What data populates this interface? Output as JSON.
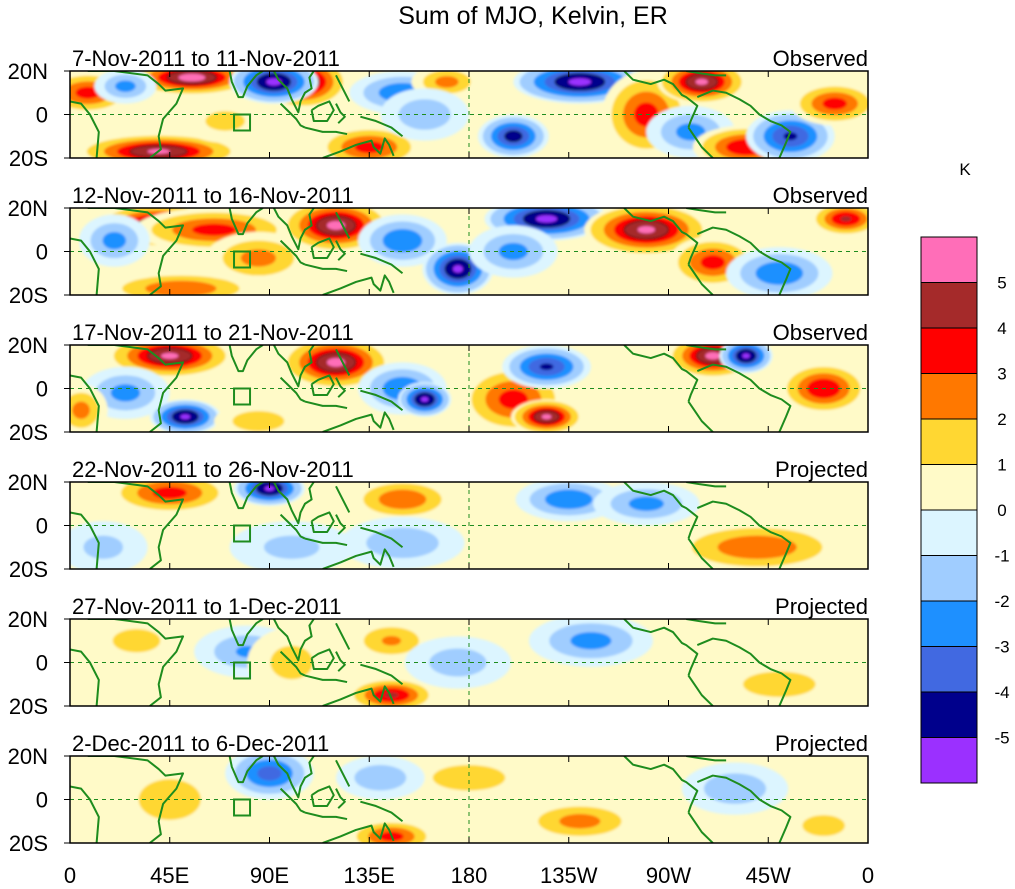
{
  "chart_data": {
    "type": "heatmap",
    "title": "Sum of MJO, Kelvin, ER",
    "colorbar": {
      "unit": "K",
      "ticks": [
        "5",
        "4",
        "3",
        "2",
        "1",
        "0",
        "-1",
        "-2",
        "-3",
        "-4",
        "-5"
      ],
      "bins": [
        {
          "range": "> 5",
          "color": "#ff6eb8"
        },
        {
          "range": "4 to 5",
          "color": "#a52a2a"
        },
        {
          "range": "3 to 4",
          "color": "#ff0000"
        },
        {
          "range": "2 to 3",
          "color": "#ff7800"
        },
        {
          "range": "1 to 2",
          "color": "#ffd732"
        },
        {
          "range": "0 to 1",
          "color": "#fffac8"
        },
        {
          "range": "-1 to 0",
          "color": "#dcf5ff"
        },
        {
          "range": "-2 to -1",
          "color": "#a0cdff"
        },
        {
          "range": "-3 to -2",
          "color": "#1e90ff"
        },
        {
          "range": "-4 to -3",
          "color": "#4169e1"
        },
        {
          "range": "-5 to -4",
          "color": "#00008c"
        },
        {
          "range": "< -5",
          "color": "#9b30ff"
        }
      ]
    },
    "x_tick_labels": [
      "0",
      "45E",
      "90E",
      "135E",
      "180",
      "135W",
      "90W",
      "45W",
      "0"
    ],
    "y_tick_labels": [
      "20N",
      "0",
      "20S"
    ],
    "xlim": [
      0,
      360
    ],
    "ylim": [
      -20,
      20
    ],
    "x_ticks_deg": [
      0,
      45,
      90,
      135,
      180,
      225,
      270,
      315,
      360
    ],
    "panels": [
      {
        "period": "7-Nov-2011 to 11-Nov-2011",
        "status": "Observed",
        "anomalies": [
          {
            "lon": 8,
            "lat": 10,
            "value": 3.5,
            "sx": 10,
            "sy": 5
          },
          {
            "lon": 55,
            "lat": 17,
            "value": 5.5,
            "sx": 14,
            "sy": 4
          },
          {
            "lon": 25,
            "lat": 13,
            "value": -2.5,
            "sx": 7,
            "sy": 4
          },
          {
            "lon": 40,
            "lat": -17,
            "value": 5.2,
            "sx": 18,
            "sy": 4
          },
          {
            "lon": 105,
            "lat": 15,
            "value": 5.3,
            "sx": 10,
            "sy": 6
          },
          {
            "lon": 92,
            "lat": 15,
            "value": -5.3,
            "sx": 10,
            "sy": 5
          },
          {
            "lon": 150,
            "lat": 10,
            "value": -3.0,
            "sx": 12,
            "sy": 5
          },
          {
            "lon": 135,
            "lat": -15,
            "value": 3.5,
            "sx": 12,
            "sy": 5
          },
          {
            "lon": 170,
            "lat": 15,
            "value": 2.5,
            "sx": 8,
            "sy": 4
          },
          {
            "lon": 160,
            "lat": 0,
            "value": -2.0,
            "sx": 10,
            "sy": 6
          },
          {
            "lon": 200,
            "lat": -10,
            "value": -4.5,
            "sx": 8,
            "sy": 5
          },
          {
            "lon": 230,
            "lat": 15,
            "value": -5.3,
            "sx": 15,
            "sy": 5
          },
          {
            "lon": 260,
            "lat": 0,
            "value": 3.5,
            "sx": 10,
            "sy": 10
          },
          {
            "lon": 285,
            "lat": 15,
            "value": 5.2,
            "sx": 10,
            "sy": 5
          },
          {
            "lon": 280,
            "lat": -8,
            "value": -2.5,
            "sx": 10,
            "sy": 6
          },
          {
            "lon": 305,
            "lat": -15,
            "value": 4.0,
            "sx": 12,
            "sy": 5
          },
          {
            "lon": 325,
            "lat": -10,
            "value": -4.2,
            "sx": 10,
            "sy": 6
          },
          {
            "lon": 345,
            "lat": 5,
            "value": 3.5,
            "sx": 10,
            "sy": 5
          },
          {
            "lon": 70,
            "lat": -3,
            "value": 1.5,
            "sx": 10,
            "sy": 5
          }
        ]
      },
      {
        "period": "12-Nov-2011 to 16-Nov-2011",
        "status": "Observed",
        "anomalies": [
          {
            "lon": 40,
            "lat": 12,
            "value": 5.2,
            "sx": 14,
            "sy": 5
          },
          {
            "lon": 65,
            "lat": 10,
            "value": 3.5,
            "sx": 18,
            "sy": 5
          },
          {
            "lon": 20,
            "lat": 5,
            "value": -2.5,
            "sx": 8,
            "sy": 6
          },
          {
            "lon": 120,
            "lat": 12,
            "value": 5.3,
            "sx": 12,
            "sy": 6
          },
          {
            "lon": 85,
            "lat": -3,
            "value": 2.5,
            "sx": 12,
            "sy": 6
          },
          {
            "lon": 150,
            "lat": 5,
            "value": -3.0,
            "sx": 10,
            "sy": 6
          },
          {
            "lon": 175,
            "lat": -8,
            "value": -5.2,
            "sx": 8,
            "sy": 6
          },
          {
            "lon": 215,
            "lat": 15,
            "value": -5.3,
            "sx": 14,
            "sy": 5
          },
          {
            "lon": 200,
            "lat": 0,
            "value": -2.5,
            "sx": 10,
            "sy": 6
          },
          {
            "lon": 260,
            "lat": 10,
            "value": 5.2,
            "sx": 14,
            "sy": 6
          },
          {
            "lon": 290,
            "lat": -5,
            "value": 3.5,
            "sx": 10,
            "sy": 6
          },
          {
            "lon": 320,
            "lat": -10,
            "value": -3.0,
            "sx": 12,
            "sy": 6
          },
          {
            "lon": 350,
            "lat": 15,
            "value": 4.2,
            "sx": 8,
            "sy": 4
          },
          {
            "lon": 50,
            "lat": -17,
            "value": 3.0,
            "sx": 18,
            "sy": 4
          }
        ]
      },
      {
        "period": "17-Nov-2011 to 21-Nov-2011",
        "status": "Observed",
        "anomalies": [
          {
            "lon": 45,
            "lat": 15,
            "value": 5.2,
            "sx": 14,
            "sy": 5
          },
          {
            "lon": 25,
            "lat": -2,
            "value": -2.5,
            "sx": 10,
            "sy": 6
          },
          {
            "lon": 52,
            "lat": -13,
            "value": -5.2,
            "sx": 8,
            "sy": 4
          },
          {
            "lon": 120,
            "lat": 12,
            "value": 5.3,
            "sx": 12,
            "sy": 6
          },
          {
            "lon": 150,
            "lat": 0,
            "value": -3.0,
            "sx": 10,
            "sy": 6
          },
          {
            "lon": 160,
            "lat": -5,
            "value": -5.2,
            "sx": 6,
            "sy": 4
          },
          {
            "lon": 200,
            "lat": -5,
            "value": 3.5,
            "sx": 12,
            "sy": 8
          },
          {
            "lon": 215,
            "lat": -13,
            "value": 5.2,
            "sx": 8,
            "sy": 4
          },
          {
            "lon": 215,
            "lat": 10,
            "value": -4.2,
            "sx": 10,
            "sy": 5
          },
          {
            "lon": 290,
            "lat": 15,
            "value": 5.3,
            "sx": 10,
            "sy": 5
          },
          {
            "lon": 305,
            "lat": 15,
            "value": -5.2,
            "sx": 6,
            "sy": 4
          },
          {
            "lon": 340,
            "lat": 0,
            "value": 4.0,
            "sx": 10,
            "sy": 6
          },
          {
            "lon": 5,
            "lat": -10,
            "value": 2.5,
            "sx": 6,
            "sy": 6
          },
          {
            "lon": 85,
            "lat": -15,
            "value": 2.0,
            "sx": 10,
            "sy": 4
          }
        ]
      },
      {
        "period": "22-Nov-2011 to 26-Nov-2011",
        "status": "Projected",
        "anomalies": [
          {
            "lon": 45,
            "lat": 15,
            "value": 3.5,
            "sx": 14,
            "sy": 5
          },
          {
            "lon": 90,
            "lat": 17,
            "value": -5.2,
            "sx": 8,
            "sy": 4
          },
          {
            "lon": 150,
            "lat": 12,
            "value": 3.0,
            "sx": 12,
            "sy": 5
          },
          {
            "lon": 225,
            "lat": 12,
            "value": -3.0,
            "sx": 12,
            "sy": 5
          },
          {
            "lon": 260,
            "lat": 10,
            "value": -2.5,
            "sx": 12,
            "sy": 5
          },
          {
            "lon": 150,
            "lat": -8,
            "value": -2.0,
            "sx": 14,
            "sy": 6
          },
          {
            "lon": 310,
            "lat": -10,
            "value": 3.0,
            "sx": 20,
            "sy": 6
          },
          {
            "lon": 15,
            "lat": -10,
            "value": -1.5,
            "sx": 10,
            "sy": 6
          },
          {
            "lon": 100,
            "lat": -10,
            "value": -1.5,
            "sx": 14,
            "sy": 6
          }
        ]
      },
      {
        "period": "27-Nov-2011 to 1-Dec-2011",
        "status": "Projected",
        "anomalies": [
          {
            "lon": 145,
            "lat": -15,
            "value": 4.2,
            "sx": 10,
            "sy": 4
          },
          {
            "lon": 145,
            "lat": 10,
            "value": 2.2,
            "sx": 10,
            "sy": 5
          },
          {
            "lon": 235,
            "lat": 10,
            "value": -2.5,
            "sx": 14,
            "sy": 6
          },
          {
            "lon": 175,
            "lat": 0,
            "value": -1.8,
            "sx": 12,
            "sy": 6
          },
          {
            "lon": 80,
            "lat": 5,
            "value": -2.2,
            "sx": 12,
            "sy": 6
          },
          {
            "lon": 100,
            "lat": 0,
            "value": 1.6,
            "sx": 10,
            "sy": 8
          },
          {
            "lon": 320,
            "lat": -10,
            "value": 2.0,
            "sx": 14,
            "sy": 5
          },
          {
            "lon": 30,
            "lat": 10,
            "value": 1.5,
            "sx": 12,
            "sy": 6
          }
        ]
      },
      {
        "period": "2-Dec-2011 to 6-Dec-2011",
        "status": "Projected",
        "anomalies": [
          {
            "lon": 90,
            "lat": 12,
            "value": -3.5,
            "sx": 10,
            "sy": 6
          },
          {
            "lon": 145,
            "lat": -17,
            "value": 3.5,
            "sx": 10,
            "sy": 4
          },
          {
            "lon": 180,
            "lat": 10,
            "value": 2.0,
            "sx": 14,
            "sy": 5
          },
          {
            "lon": 230,
            "lat": -10,
            "value": 2.5,
            "sx": 14,
            "sy": 5
          },
          {
            "lon": 140,
            "lat": 10,
            "value": -2.0,
            "sx": 10,
            "sy": 5
          },
          {
            "lon": 300,
            "lat": 5,
            "value": -2.0,
            "sx": 12,
            "sy": 6
          },
          {
            "lon": 45,
            "lat": 0,
            "value": 2.0,
            "sx": 12,
            "sy": 8
          },
          {
            "lon": 340,
            "lat": -12,
            "value": 1.6,
            "sx": 10,
            "sy": 5
          }
        ]
      }
    ]
  }
}
